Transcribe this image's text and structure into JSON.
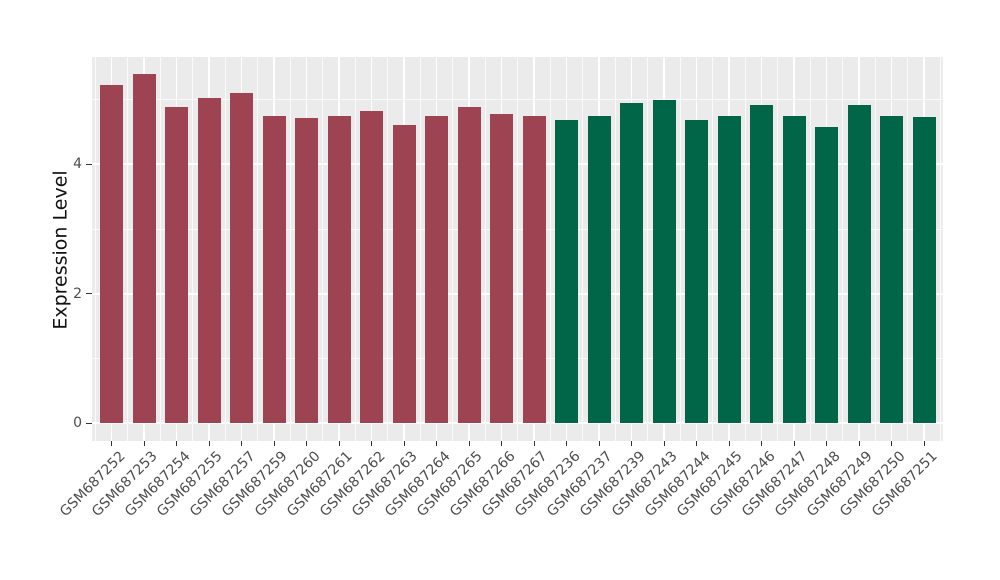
{
  "chart_data": {
    "type": "bar",
    "title": "",
    "xlabel": "",
    "ylabel": "Expression Level",
    "yticks": [
      0,
      2,
      4
    ],
    "minor_yticks": [
      1,
      3,
      5
    ],
    "ylim": [
      -0.27,
      5.66
    ],
    "grid": "on",
    "legend_position": "none",
    "categories": [
      "GSM687252",
      "GSM687253",
      "GSM687254",
      "GSM687255",
      "GSM687257",
      "GSM687259",
      "GSM687260",
      "GSM687261",
      "GSM687262",
      "GSM687263",
      "GSM687264",
      "GSM687265",
      "GSM687266",
      "GSM687267",
      "GSM687236",
      "GSM687237",
      "GSM687239",
      "GSM687243",
      "GSM687244",
      "GSM687245",
      "GSM687246",
      "GSM687247",
      "GSM687248",
      "GSM687249",
      "GSM687250",
      "GSM687251"
    ],
    "values": [
      5.22,
      5.4,
      4.89,
      5.02,
      5.1,
      4.75,
      4.72,
      4.75,
      4.83,
      4.6,
      4.75,
      4.89,
      4.77,
      4.75,
      4.68,
      4.74,
      4.94,
      5.0,
      4.68,
      4.74,
      4.92,
      4.74,
      4.57,
      4.92,
      4.74,
      4.73
    ],
    "bar_groups": [
      0,
      0,
      0,
      0,
      0,
      0,
      0,
      0,
      0,
      0,
      0,
      0,
      0,
      0,
      1,
      1,
      1,
      1,
      1,
      1,
      1,
      1,
      1,
      1,
      1,
      1
    ],
    "group_colors": [
      "#9e4352",
      "#006647"
    ]
  },
  "style": {
    "panel_bg": "#ebebeb",
    "gridline_color": "#ffffff",
    "tick_label_color": "#4d4d4d",
    "axis_title_color": "#111111",
    "figure_bg": "#ffffff"
  }
}
